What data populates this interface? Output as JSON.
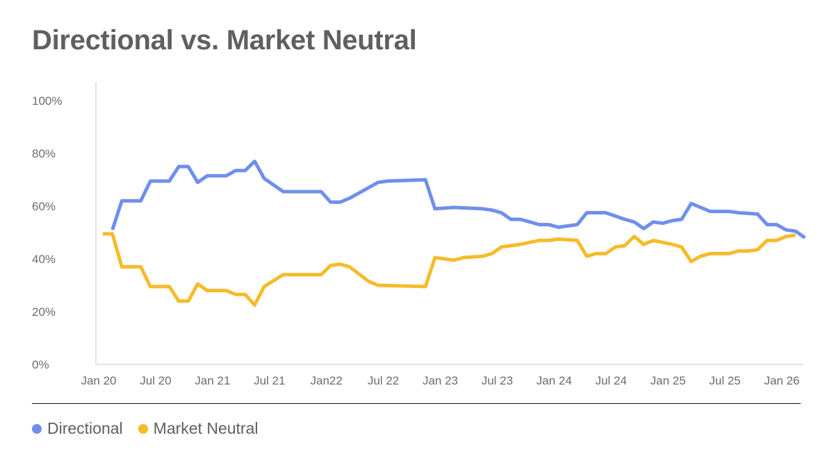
{
  "chart_data": {
    "type": "line",
    "title": "Directional vs. Market Neutral",
    "xlabel": "",
    "ylabel": "",
    "ylim": [
      0,
      100
    ],
    "y_ticks": [
      "0%",
      "20%",
      "40%",
      "60%",
      "80%",
      "100%"
    ],
    "x_tick_labels": [
      "Jan 20",
      "Jul 20",
      "Jan 21",
      "Jul 21",
      "Jan22",
      "Jul 22",
      "Jan 23",
      "Jul 23",
      "Jan 24",
      "Jul 24",
      "Jan 25",
      "Jul 25",
      "Jan 26"
    ],
    "x_tick_months": [
      "2020-01",
      "2020-07",
      "2021-01",
      "2021-07",
      "2022-01",
      "2022-07",
      "2023-01",
      "2023-07",
      "2024-01",
      "2024-07",
      "2025-01",
      "2025-07",
      "2026-01"
    ],
    "grid": false,
    "legend_position": "bottom-left",
    "series": [
      {
        "name": "Directional",
        "color": "#6F8FEE",
        "points": [
          [
            "2020-02",
            51
          ],
          [
            "2020-03",
            62
          ],
          [
            "2020-05",
            62
          ],
          [
            "2020-06",
            69.5
          ],
          [
            "2020-08",
            69.5
          ],
          [
            "2020-09",
            75
          ],
          [
            "2020-10",
            75
          ],
          [
            "2020-11",
            69
          ],
          [
            "2020-12",
            71.5
          ],
          [
            "2021-02",
            71.5
          ],
          [
            "2021-03",
            73.5
          ],
          [
            "2021-04",
            73.5
          ],
          [
            "2021-05",
            77
          ],
          [
            "2021-06",
            70.5
          ],
          [
            "2021-08",
            65.5
          ],
          [
            "2021-12",
            65.5
          ],
          [
            "2022-01",
            61.5
          ],
          [
            "2022-02",
            61.5
          ],
          [
            "2022-03",
            63
          ],
          [
            "2022-06",
            69
          ],
          [
            "2022-07",
            69.5
          ],
          [
            "2022-11",
            70
          ],
          [
            "2022-12",
            59
          ],
          [
            "2023-02",
            59.5
          ],
          [
            "2023-05",
            59
          ],
          [
            "2023-06",
            58.5
          ],
          [
            "2023-07",
            57.5
          ],
          [
            "2023-08",
            55
          ],
          [
            "2023-09",
            55
          ],
          [
            "2023-11",
            53
          ],
          [
            "2023-12",
            53
          ],
          [
            "2024-01",
            52
          ],
          [
            "2024-03",
            53
          ],
          [
            "2024-04",
            57.5
          ],
          [
            "2024-06",
            57.5
          ],
          [
            "2024-08",
            55
          ],
          [
            "2024-09",
            54
          ],
          [
            "2024-10",
            51.5
          ],
          [
            "2024-11",
            54
          ],
          [
            "2024-12",
            53.5
          ],
          [
            "2025-01",
            54.5
          ],
          [
            "2025-02",
            55
          ],
          [
            "2025-03",
            61
          ],
          [
            "2025-05",
            58
          ],
          [
            "2025-07",
            58
          ],
          [
            "2025-08",
            57.5
          ],
          [
            "2025-10",
            57
          ],
          [
            "2025-11",
            53
          ],
          [
            "2025-12",
            53
          ],
          [
            "2026-01",
            51
          ],
          [
            "2026-02",
            50.5
          ],
          [
            "2026-03",
            48
          ]
        ]
      },
      {
        "name": "Market Neutral",
        "color": "#F6BB2A",
        "points": [
          [
            "2020-01",
            49.5
          ],
          [
            "2020-02",
            49.5
          ],
          [
            "2020-03",
            37
          ],
          [
            "2020-05",
            37
          ],
          [
            "2020-06",
            29.5
          ],
          [
            "2020-08",
            29.5
          ],
          [
            "2020-09",
            24
          ],
          [
            "2020-10",
            24
          ],
          [
            "2020-11",
            30.5
          ],
          [
            "2020-12",
            28
          ],
          [
            "2021-02",
            28
          ],
          [
            "2021-03",
            26.5
          ],
          [
            "2021-04",
            26.5
          ],
          [
            "2021-05",
            22.5
          ],
          [
            "2021-06",
            29.5
          ],
          [
            "2021-08",
            34
          ],
          [
            "2021-12",
            34
          ],
          [
            "2022-01",
            37.5
          ],
          [
            "2022-02",
            38
          ],
          [
            "2022-03",
            37
          ],
          [
            "2022-05",
            31.5
          ],
          [
            "2022-06",
            30
          ],
          [
            "2022-11",
            29.5
          ],
          [
            "2022-12",
            40.5
          ],
          [
            "2023-02",
            39.5
          ],
          [
            "2023-03",
            40.5
          ],
          [
            "2023-05",
            41
          ],
          [
            "2023-06",
            42
          ],
          [
            "2023-07",
            44.5
          ],
          [
            "2023-09",
            45.5
          ],
          [
            "2023-11",
            47
          ],
          [
            "2023-12",
            47
          ],
          [
            "2024-01",
            47.5
          ],
          [
            "2024-03",
            47
          ],
          [
            "2024-04",
            41
          ],
          [
            "2024-05",
            42
          ],
          [
            "2024-06",
            42
          ],
          [
            "2024-07",
            44.5
          ],
          [
            "2024-08",
            45
          ],
          [
            "2024-09",
            48.5
          ],
          [
            "2024-10",
            45.5
          ],
          [
            "2024-11",
            47
          ],
          [
            "2025-01",
            45.5
          ],
          [
            "2025-02",
            44.5
          ],
          [
            "2025-03",
            39
          ],
          [
            "2025-04",
            41
          ],
          [
            "2025-05",
            42
          ],
          [
            "2025-07",
            42
          ],
          [
            "2025-08",
            43
          ],
          [
            "2025-09",
            43
          ],
          [
            "2025-10",
            43.5
          ],
          [
            "2025-11",
            47
          ],
          [
            "2025-12",
            47
          ],
          [
            "2026-01",
            48.5
          ],
          [
            "2026-02",
            49
          ]
        ]
      }
    ]
  }
}
